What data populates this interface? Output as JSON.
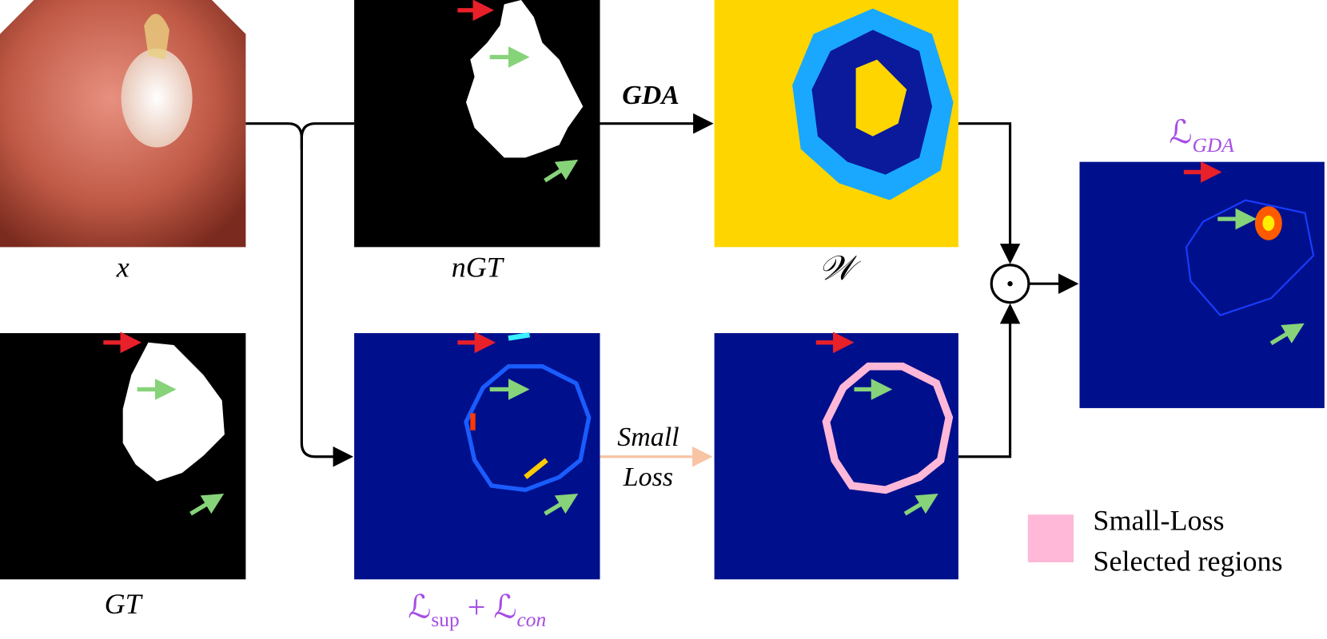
{
  "panels": [
    {
      "label": "x"
    },
    {
      "label": "nGT"
    },
    {
      "label": "𝒲"
    },
    {
      "label": "GT"
    },
    {
      "label_parts": [
        "ℒ",
        "sup",
        " + ",
        "ℒ",
        "con"
      ]
    },
    {
      "label_parts": [
        "ℒ",
        "GDA"
      ]
    }
  ],
  "edges": [
    {
      "label": "GDA"
    },
    {
      "label_lines": [
        "Small",
        "Loss"
      ]
    }
  ],
  "legend": {
    "label_lines": [
      "Small-Loss",
      "Selected regions"
    ]
  }
}
